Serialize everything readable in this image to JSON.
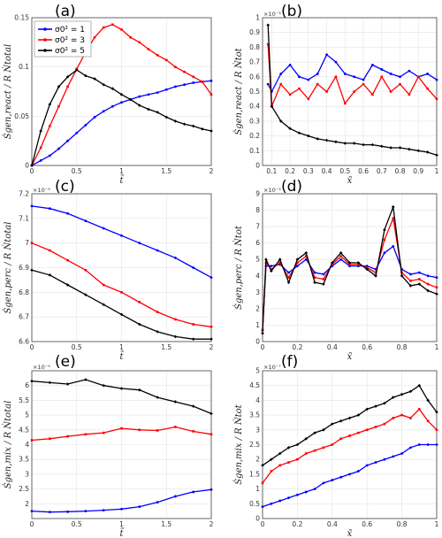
{
  "panels": [
    {
      "label": "(a)",
      "xlabel": "t̃",
      "ylabel": "Ṡgen,react / R Ṅtotal",
      "exponent": "",
      "xlim": [
        0,
        2
      ],
      "ylim": [
        0,
        0.15
      ],
      "xticks": [
        "0",
        "0.5",
        "1",
        "1.5",
        "2"
      ],
      "xtick_values": [
        0,
        0.5,
        1,
        1.5,
        2
      ],
      "yticks": [
        "0",
        "0.05",
        "0.1",
        "0.15"
      ],
      "ytick_values": [
        0,
        0.05,
        0.1,
        0.15
      ],
      "legend": [
        "σ0² = 1",
        "σ0² = 3",
        "σ0² = 5"
      ]
    },
    {
      "label": "(b)",
      "xlabel": "x̃",
      "ylabel": "Ṡgen,react / R Ṅtot",
      "exponent": "×10⁻³",
      "xlim": [
        0.05,
        1
      ],
      "ylim": [
        0,
        1
      ],
      "xticks": [
        "0.1",
        "0.2",
        "0.3",
        "0.4",
        "0.5",
        "0.6",
        "0.7",
        "0.8",
        "0.9",
        "1"
      ],
      "xtick_values": [
        0.1,
        0.2,
        0.3,
        0.4,
        0.5,
        0.6,
        0.7,
        0.8,
        0.9,
        1
      ],
      "yticks": [
        "0",
        "0.1",
        "0.2",
        "0.3",
        "0.4",
        "0.5",
        "0.6",
        "0.7",
        "0.8",
        "0.9",
        "1"
      ],
      "ytick_values": [
        0,
        0.1,
        0.2,
        0.3,
        0.4,
        0.5,
        0.6,
        0.7,
        0.8,
        0.9,
        1
      ]
    },
    {
      "label": "(c)",
      "xlabel": "t̃",
      "ylabel": "Ṡgen,perc / R Ṅtotal",
      "exponent": "×10⁻³",
      "xlim": [
        0,
        2
      ],
      "ylim": [
        6.6,
        7.2
      ],
      "xticks": [
        "0",
        "0.5",
        "1",
        "1.5",
        "2"
      ],
      "xtick_values": [
        0,
        0.5,
        1,
        1.5,
        2
      ],
      "yticks": [
        "6.6",
        "6.7",
        "6.8",
        "6.9",
        "7",
        "7.1",
        "7.2"
      ],
      "ytick_values": [
        6.6,
        6.7,
        6.8,
        6.9,
        7,
        7.1,
        7.2
      ]
    },
    {
      "label": "(d)",
      "xlabel": "x̃",
      "ylabel": "Ṡgen,perc / R Ṅtot",
      "exponent": "×10⁻³",
      "xlim": [
        0,
        1
      ],
      "ylim": [
        0,
        9
      ],
      "xticks": [
        "0",
        "0.2",
        "0.4",
        "0.6",
        "0.8",
        "1"
      ],
      "xtick_values": [
        0,
        0.2,
        0.4,
        0.6,
        0.8,
        1
      ],
      "yticks": [
        "0",
        "1",
        "2",
        "3",
        "4",
        "5",
        "6",
        "7",
        "8",
        "9"
      ],
      "ytick_values": [
        0,
        1,
        2,
        3,
        4,
        5,
        6,
        7,
        8,
        9
      ]
    },
    {
      "label": "(e)",
      "xlabel": "t̃",
      "ylabel": "Ṡgen,mix / R Ṅtotal",
      "exponent": "×10⁻⁵",
      "xlim": [
        0,
        2
      ],
      "ylim": [
        1.5,
        6.5
      ],
      "xticks": [
        "0",
        "0.5",
        "1",
        "1.5",
        "2"
      ],
      "xtick_values": [
        0,
        0.5,
        1,
        1.5,
        2
      ],
      "yticks": [
        "2",
        "2.5",
        "3",
        "3.5",
        "4",
        "4.5",
        "5",
        "5.5",
        "6"
      ],
      "ytick_values": [
        2,
        2.5,
        3,
        3.5,
        4,
        4.5,
        5,
        5.5,
        6
      ]
    },
    {
      "label": "(f)",
      "xlabel": "x̃",
      "ylabel": "Ṡgen,mix / R Ṅtot",
      "exponent": "×10⁻⁷",
      "xlim": [
        0,
        1
      ],
      "ylim": [
        0,
        5
      ],
      "xticks": [
        "0",
        "0.2",
        "0.4",
        "0.6",
        "0.8",
        "1"
      ],
      "xtick_values": [
        0,
        0.2,
        0.4,
        0.6,
        0.8,
        1
      ],
      "yticks": [
        "0",
        "0.5",
        "1",
        "1.5",
        "2",
        "2.5",
        "3",
        "3.5",
        "4",
        "4.5",
        "5"
      ],
      "ytick_values": [
        0,
        0.5,
        1,
        1.5,
        2,
        2.5,
        3,
        3.5,
        4,
        4.5,
        5
      ]
    }
  ],
  "colors": {
    "s1": "#0000ff",
    "s3": "#ff0000",
    "s5": "#000000"
  },
  "chart_data": [
    {
      "type": "line",
      "panel": "(a)",
      "xlim": [
        0,
        2
      ],
      "ylim": [
        0,
        0.15
      ],
      "grid": true,
      "legend_position": "top-left",
      "series": [
        {
          "name": "σ0² = 1",
          "color": "#0000ff",
          "x": [
            0,
            0.1,
            0.2,
            0.3,
            0.4,
            0.5,
            0.6,
            0.7,
            0.8,
            0.9,
            1.0,
            1.1,
            1.2,
            1.3,
            1.4,
            1.5,
            1.6,
            1.7,
            1.8,
            1.9,
            2.0
          ],
          "y": [
            0,
            0.005,
            0.01,
            0.017,
            0.025,
            0.033,
            0.041,
            0.049,
            0.055,
            0.06,
            0.064,
            0.067,
            0.07,
            0.072,
            0.074,
            0.077,
            0.08,
            0.082,
            0.084,
            0.085,
            0.086
          ]
        },
        {
          "name": "σ0² = 3",
          "color": "#ff0000",
          "x": [
            0,
            0.1,
            0.2,
            0.3,
            0.4,
            0.5,
            0.6,
            0.7,
            0.8,
            0.9,
            1.0,
            1.1,
            1.2,
            1.3,
            1.4,
            1.5,
            1.6,
            1.7,
            1.8,
            1.9,
            2.0
          ],
          "y": [
            0,
            0.018,
            0.04,
            0.06,
            0.08,
            0.098,
            0.115,
            0.13,
            0.14,
            0.143,
            0.138,
            0.13,
            0.125,
            0.118,
            0.112,
            0.107,
            0.1,
            0.095,
            0.09,
            0.085,
            0.072
          ]
        },
        {
          "name": "σ0² = 5",
          "color": "#000000",
          "x": [
            0,
            0.1,
            0.2,
            0.3,
            0.4,
            0.5,
            0.6,
            0.7,
            0.8,
            0.9,
            1.0,
            1.1,
            1.2,
            1.3,
            1.4,
            1.5,
            1.6,
            1.7,
            1.8,
            1.9,
            2.0
          ],
          "y": [
            0,
            0.035,
            0.062,
            0.08,
            0.09,
            0.097,
            0.091,
            0.088,
            0.082,
            0.078,
            0.072,
            0.067,
            0.061,
            0.057,
            0.054,
            0.049,
            0.045,
            0.042,
            0.04,
            0.037,
            0.035
          ]
        }
      ]
    },
    {
      "type": "line",
      "panel": "(b)",
      "xlim": [
        0.05,
        1
      ],
      "ylim": [
        0,
        1
      ],
      "grid": true,
      "series": [
        {
          "name": "σ0² = 1",
          "color": "#0000ff",
          "x": [
            0.08,
            0.1,
            0.15,
            0.2,
            0.25,
            0.3,
            0.35,
            0.4,
            0.45,
            0.5,
            0.55,
            0.6,
            0.65,
            0.7,
            0.75,
            0.8,
            0.85,
            0.9,
            0.95,
            1.0
          ],
          "y": [
            0.55,
            0.5,
            0.62,
            0.68,
            0.6,
            0.58,
            0.62,
            0.75,
            0.7,
            0.62,
            0.6,
            0.58,
            0.68,
            0.65,
            0.62,
            0.6,
            0.64,
            0.6,
            0.62,
            0.58
          ]
        },
        {
          "name": "σ0² = 3",
          "color": "#ff0000",
          "x": [
            0.08,
            0.1,
            0.15,
            0.2,
            0.25,
            0.3,
            0.35,
            0.4,
            0.45,
            0.5,
            0.55,
            0.6,
            0.65,
            0.7,
            0.75,
            0.8,
            0.85,
            0.9,
            0.95,
            1.0
          ],
          "y": [
            0.82,
            0.4,
            0.55,
            0.48,
            0.52,
            0.45,
            0.55,
            0.5,
            0.6,
            0.42,
            0.5,
            0.55,
            0.48,
            0.6,
            0.5,
            0.55,
            0.48,
            0.6,
            0.52,
            0.45
          ]
        },
        {
          "name": "σ0² = 5",
          "color": "#000000",
          "x": [
            0.08,
            0.1,
            0.15,
            0.2,
            0.25,
            0.3,
            0.35,
            0.4,
            0.45,
            0.5,
            0.55,
            0.6,
            0.65,
            0.7,
            0.75,
            0.8,
            0.85,
            0.9,
            0.95,
            1.0
          ],
          "y": [
            0.95,
            0.4,
            0.3,
            0.25,
            0.22,
            0.2,
            0.18,
            0.17,
            0.16,
            0.15,
            0.15,
            0.14,
            0.14,
            0.13,
            0.12,
            0.12,
            0.11,
            0.1,
            0.09,
            0.07
          ]
        }
      ]
    },
    {
      "type": "line",
      "panel": "(c)",
      "xlim": [
        0,
        2
      ],
      "ylim": [
        6.6,
        7.2
      ],
      "grid": true,
      "series": [
        {
          "name": "σ0² = 1",
          "color": "#0000ff",
          "x": [
            0,
            0.2,
            0.4,
            0.6,
            0.8,
            1.0,
            1.2,
            1.4,
            1.6,
            1.8,
            2.0
          ],
          "y": [
            7.15,
            7.14,
            7.12,
            7.09,
            7.06,
            7.03,
            7.0,
            6.97,
            6.94,
            6.9,
            6.86
          ]
        },
        {
          "name": "σ0² = 3",
          "color": "#ff0000",
          "x": [
            0,
            0.2,
            0.4,
            0.6,
            0.8,
            1.0,
            1.2,
            1.4,
            1.6,
            1.8,
            2.0
          ],
          "y": [
            7.0,
            6.97,
            6.93,
            6.89,
            6.83,
            6.8,
            6.76,
            6.72,
            6.69,
            6.67,
            6.66
          ]
        },
        {
          "name": "σ0² = 5",
          "color": "#000000",
          "x": [
            0,
            0.2,
            0.4,
            0.6,
            0.8,
            1.0,
            1.2,
            1.4,
            1.6,
            1.8,
            2.0
          ],
          "y": [
            6.89,
            6.87,
            6.83,
            6.79,
            6.75,
            6.71,
            6.67,
            6.64,
            6.62,
            6.61,
            6.61
          ]
        }
      ]
    },
    {
      "type": "line",
      "panel": "(d)",
      "xlim": [
        0,
        1
      ],
      "ylim": [
        0,
        9
      ],
      "grid": true,
      "series": [
        {
          "name": "σ0² = 1",
          "color": "#0000ff",
          "x": [
            0,
            0.02,
            0.05,
            0.1,
            0.15,
            0.2,
            0.25,
            0.3,
            0.35,
            0.4,
            0.45,
            0.5,
            0.55,
            0.6,
            0.65,
            0.7,
            0.75,
            0.8,
            0.85,
            0.9,
            0.95,
            1.0
          ],
          "y": [
            0.7,
            4.6,
            4.6,
            4.7,
            4.2,
            4.6,
            5.0,
            4.2,
            4.1,
            4.6,
            5.0,
            4.6,
            4.6,
            4.6,
            4.4,
            5.4,
            5.8,
            4.4,
            4.1,
            4.2,
            4.0,
            3.9
          ]
        },
        {
          "name": "σ0² = 3",
          "color": "#ff0000",
          "x": [
            0,
            0.02,
            0.05,
            0.1,
            0.15,
            0.2,
            0.25,
            0.3,
            0.35,
            0.4,
            0.45,
            0.5,
            0.55,
            0.6,
            0.65,
            0.7,
            0.75,
            0.8,
            0.85,
            0.9,
            0.95,
            1.0
          ],
          "y": [
            0.7,
            4.8,
            4.4,
            4.8,
            3.9,
            4.8,
            5.2,
            3.9,
            3.8,
            4.7,
            5.2,
            4.7,
            4.7,
            4.5,
            4.2,
            6.2,
            7.5,
            4.2,
            3.7,
            3.8,
            3.5,
            3.3
          ]
        },
        {
          "name": "σ0² = 5",
          "color": "#000000",
          "x": [
            0,
            0.02,
            0.05,
            0.1,
            0.15,
            0.2,
            0.25,
            0.3,
            0.35,
            0.4,
            0.45,
            0.5,
            0.55,
            0.6,
            0.65,
            0.7,
            0.75,
            0.8,
            0.85,
            0.9,
            0.95,
            1.0
          ],
          "y": [
            0.5,
            5.0,
            4.3,
            5.0,
            3.6,
            5.0,
            5.4,
            3.6,
            3.5,
            4.8,
            5.4,
            4.8,
            4.8,
            4.4,
            4.0,
            6.8,
            8.2,
            4.0,
            3.4,
            3.5,
            3.1,
            2.9
          ]
        }
      ]
    },
    {
      "type": "line",
      "panel": "(e)",
      "xlim": [
        0,
        2
      ],
      "ylim": [
        1.5,
        6.5
      ],
      "grid": true,
      "series": [
        {
          "name": "σ0² = 1",
          "color": "#0000ff",
          "x": [
            0,
            0.2,
            0.4,
            0.6,
            0.8,
            1.0,
            1.2,
            1.4,
            1.6,
            1.8,
            2.0
          ],
          "y": [
            1.75,
            1.72,
            1.73,
            1.75,
            1.78,
            1.82,
            1.9,
            2.05,
            2.25,
            2.4,
            2.48
          ]
        },
        {
          "name": "σ0² = 3",
          "color": "#ff0000",
          "x": [
            0,
            0.2,
            0.4,
            0.6,
            0.8,
            1.0,
            1.2,
            1.4,
            1.6,
            1.8,
            2.0
          ],
          "y": [
            4.15,
            4.2,
            4.28,
            4.35,
            4.4,
            4.55,
            4.5,
            4.48,
            4.6,
            4.45,
            4.35
          ]
        },
        {
          "name": "σ0² = 5",
          "color": "#000000",
          "x": [
            0,
            0.2,
            0.4,
            0.6,
            0.8,
            1.0,
            1.2,
            1.4,
            1.6,
            1.8,
            2.0
          ],
          "y": [
            6.15,
            6.1,
            6.05,
            6.2,
            6.0,
            5.9,
            5.85,
            5.6,
            5.45,
            5.3,
            5.05
          ]
        }
      ]
    },
    {
      "type": "line",
      "panel": "(f)",
      "xlim": [
        0,
        1
      ],
      "ylim": [
        0,
        5
      ],
      "grid": true,
      "series": [
        {
          "name": "σ0² = 1",
          "color": "#0000ff",
          "x": [
            0,
            0.05,
            0.1,
            0.15,
            0.2,
            0.25,
            0.3,
            0.35,
            0.4,
            0.45,
            0.5,
            0.55,
            0.6,
            0.65,
            0.7,
            0.75,
            0.8,
            0.85,
            0.9,
            0.95,
            1.0
          ],
          "y": [
            0.4,
            0.5,
            0.6,
            0.7,
            0.8,
            0.9,
            1.0,
            1.2,
            1.3,
            1.4,
            1.5,
            1.6,
            1.8,
            1.9,
            2.0,
            2.1,
            2.2,
            2.4,
            2.5,
            2.5,
            2.5
          ]
        },
        {
          "name": "σ0² = 3",
          "color": "#ff0000",
          "x": [
            0,
            0.05,
            0.1,
            0.15,
            0.2,
            0.25,
            0.3,
            0.35,
            0.4,
            0.45,
            0.5,
            0.55,
            0.6,
            0.65,
            0.7,
            0.75,
            0.8,
            0.85,
            0.9,
            0.95,
            1.0
          ],
          "y": [
            1.2,
            1.6,
            1.8,
            1.9,
            2.0,
            2.2,
            2.3,
            2.4,
            2.5,
            2.7,
            2.8,
            2.9,
            3.0,
            3.1,
            3.2,
            3.4,
            3.5,
            3.4,
            3.7,
            3.3,
            3.0
          ]
        },
        {
          "name": "σ0² = 5",
          "color": "#000000",
          "x": [
            0,
            0.05,
            0.1,
            0.15,
            0.2,
            0.25,
            0.3,
            0.35,
            0.4,
            0.45,
            0.5,
            0.55,
            0.6,
            0.65,
            0.7,
            0.75,
            0.8,
            0.85,
            0.9,
            0.95,
            1.0
          ],
          "y": [
            1.8,
            2.0,
            2.2,
            2.4,
            2.5,
            2.7,
            2.9,
            3.0,
            3.2,
            3.3,
            3.4,
            3.5,
            3.7,
            3.8,
            3.9,
            4.1,
            4.2,
            4.3,
            4.5,
            4.0,
            3.6
          ]
        }
      ]
    }
  ]
}
